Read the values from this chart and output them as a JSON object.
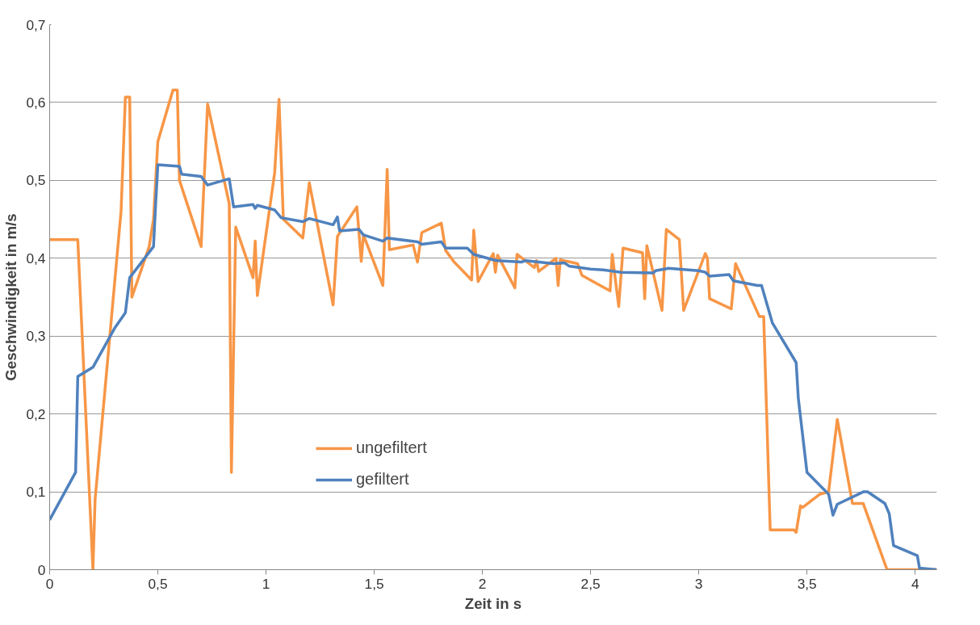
{
  "chart_data": {
    "type": "line",
    "xlabel": "Zeit in s",
    "ylabel": "Geschwindigkeit in m/s",
    "xlim": [
      0,
      4.1
    ],
    "ylim": [
      0,
      0.7
    ],
    "xticks": [
      0,
      {
        "value": 0.5,
        "label": "0,5"
      },
      1,
      {
        "value": 1.5,
        "label": "1,5"
      },
      2,
      {
        "value": 2.5,
        "label": "2,5"
      },
      3,
      {
        "value": 3.5,
        "label": "3,5"
      },
      4
    ],
    "yticks": [
      0,
      {
        "value": 0.1,
        "label": "0,1"
      },
      {
        "value": 0.2,
        "label": "0,2"
      },
      {
        "value": 0.3,
        "label": "0,3"
      },
      {
        "value": 0.4,
        "label": "0,4"
      },
      {
        "value": 0.5,
        "label": "0,5"
      },
      {
        "value": 0.6,
        "label": "0,6"
      },
      {
        "value": 0.7,
        "label": "0,7"
      }
    ],
    "grid": "y",
    "legend": "bottom left",
    "marker": "none",
    "line_style": "solid",
    "series": [
      {
        "name": "ungefiltert",
        "color": "#f79646",
        "x": [
          0,
          0.13,
          0.2,
          0.21,
          0.33,
          0.35,
          0.37,
          0.38,
          0.46,
          0.48,
          0.5,
          0.57,
          0.59,
          0.6,
          0.7,
          0.73,
          0.83,
          0.84,
          0.86,
          0.94,
          0.95,
          0.96,
          1.04,
          1.06,
          1.08,
          1.17,
          1.2,
          1.31,
          1.33,
          1.42,
          1.44,
          1.45,
          1.54,
          1.56,
          1.57,
          1.68,
          1.7,
          1.72,
          1.81,
          1.83,
          1.87,
          1.95,
          1.96,
          1.98,
          2.05,
          2.06,
          2.07,
          2.15,
          2.16,
          2.24,
          2.25,
          2.26,
          2.34,
          2.35,
          2.36,
          2.44,
          2.46,
          2.59,
          2.6,
          2.63,
          2.65,
          2.74,
          2.75,
          2.76,
          2.83,
          2.85,
          2.91,
          2.93,
          3.03,
          3.04,
          3.05,
          3.15,
          3.17,
          3.28,
          3.3,
          3.33,
          3.44,
          3.45,
          3.47,
          3.48,
          3.56,
          3.6,
          3.64,
          3.71,
          3.76,
          3.87,
          4.1
        ],
        "values": [
          0.424,
          0.424,
          0,
          0.09,
          0.46,
          0.607,
          0.607,
          0.35,
          0.415,
          0.45,
          0.55,
          0.616,
          0.616,
          0.5,
          0.415,
          0.598,
          0.47,
          0.125,
          0.44,
          0.375,
          0.422,
          0.352,
          0.51,
          0.604,
          0.45,
          0.426,
          0.497,
          0.34,
          0.428,
          0.466,
          0.396,
          0.43,
          0.365,
          0.514,
          0.411,
          0.417,
          0.395,
          0.433,
          0.445,
          0.41,
          0.395,
          0.372,
          0.436,
          0.37,
          0.406,
          0.382,
          0.404,
          0.362,
          0.405,
          0.388,
          0.397,
          0.383,
          0.4,
          0.365,
          0.398,
          0.393,
          0.378,
          0.358,
          0.405,
          0.338,
          0.413,
          0.407,
          0.348,
          0.416,
          0.333,
          0.437,
          0.424,
          0.333,
          0.406,
          0.4,
          0.348,
          0.335,
          0.393,
          0.325,
          0.325,
          0.051,
          0.051,
          0.048,
          0.082,
          0.08,
          0.097,
          0.1,
          0.193,
          0.085,
          0.085,
          0,
          0
        ]
      },
      {
        "name": "gefiltert",
        "color": "#4f81bd",
        "x": [
          0,
          0.12,
          0.13,
          0.2,
          0.3,
          0.35,
          0.37,
          0.48,
          0.49,
          0.5,
          0.6,
          0.61,
          0.7,
          0.73,
          0.83,
          0.85,
          0.94,
          0.95,
          0.96,
          1.04,
          1.07,
          1.17,
          1.2,
          1.31,
          1.33,
          1.34,
          1.43,
          1.45,
          1.54,
          1.56,
          1.7,
          1.72,
          1.81,
          1.83,
          1.93,
          1.96,
          2.05,
          2.07,
          2.18,
          2.2,
          2.33,
          2.38,
          2.4,
          2.5,
          2.56,
          2.64,
          2.79,
          2.8,
          2.86,
          3.0,
          3.03,
          3.05,
          3.14,
          3.16,
          3.27,
          3.29,
          3.34,
          3.45,
          3.46,
          3.5,
          3.6,
          3.62,
          3.64,
          3.76,
          3.78,
          3.86,
          3.88,
          3.9,
          4.01,
          4.02,
          4.1
        ],
        "values": [
          0.064,
          0.125,
          0.248,
          0.26,
          0.31,
          0.33,
          0.375,
          0.415,
          0.47,
          0.52,
          0.518,
          0.508,
          0.505,
          0.494,
          0.502,
          0.466,
          0.469,
          0.464,
          0.468,
          0.462,
          0.452,
          0.447,
          0.451,
          0.443,
          0.453,
          0.435,
          0.437,
          0.43,
          0.422,
          0.426,
          0.421,
          0.418,
          0.421,
          0.413,
          0.413,
          0.405,
          0.398,
          0.397,
          0.395,
          0.397,
          0.393,
          0.394,
          0.39,
          0.386,
          0.385,
          0.382,
          0.381,
          0.384,
          0.387,
          0.384,
          0.382,
          0.377,
          0.379,
          0.371,
          0.365,
          0.365,
          0.317,
          0.266,
          0.22,
          0.125,
          0.097,
          0.07,
          0.084,
          0.1,
          0.1,
          0.085,
          0.072,
          0.031,
          0.018,
          0.002,
          0
        ]
      }
    ]
  }
}
